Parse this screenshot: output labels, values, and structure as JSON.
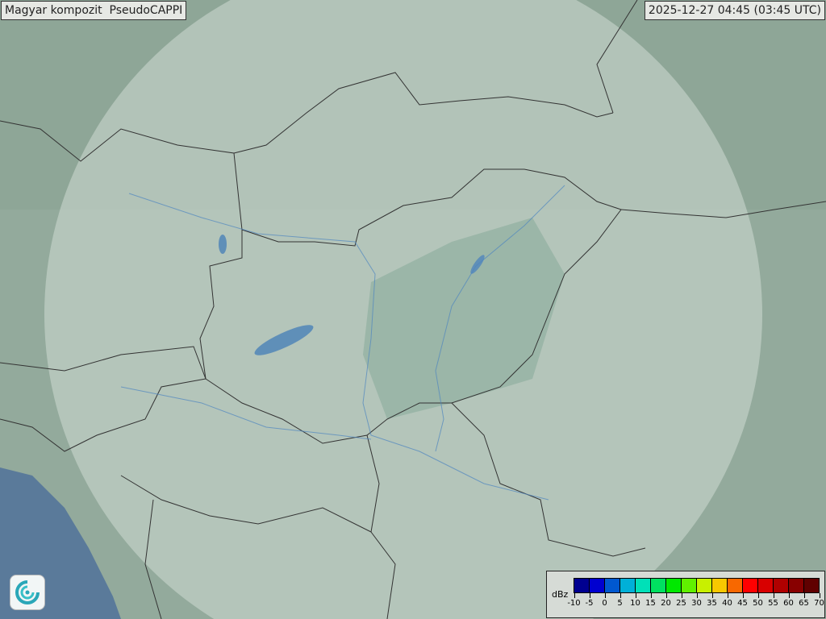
{
  "header": {
    "title": "Magyar kompozit  PseudoCAPPI",
    "timestamp": "2025-12-27 04:45 (03:45 UTC)"
  },
  "legend": {
    "unit": "dBz",
    "ticks": [
      "-10",
      "-5",
      "0",
      "5",
      "10",
      "15",
      "20",
      "25",
      "30",
      "35",
      "40",
      "45",
      "50",
      "55",
      "60",
      "65",
      "70"
    ],
    "colors": [
      "#000090",
      "#0000d0",
      "#0058d0",
      "#00b0d8",
      "#00e0b8",
      "#00e060",
      "#00e800",
      "#60f000",
      "#c8f000",
      "#f8c800",
      "#f86800",
      "#ff0000",
      "#d80000",
      "#b00000",
      "#880000",
      "#600000"
    ]
  },
  "map": {
    "coverage_circle_color": "#dde6e0",
    "land_color": "#8fa89a",
    "sea_color": "#5a7a9a",
    "lake_color": "#5f8fb8",
    "border_color": "#333333"
  },
  "logo": {
    "icon": "weather-service-swirl-logo"
  }
}
